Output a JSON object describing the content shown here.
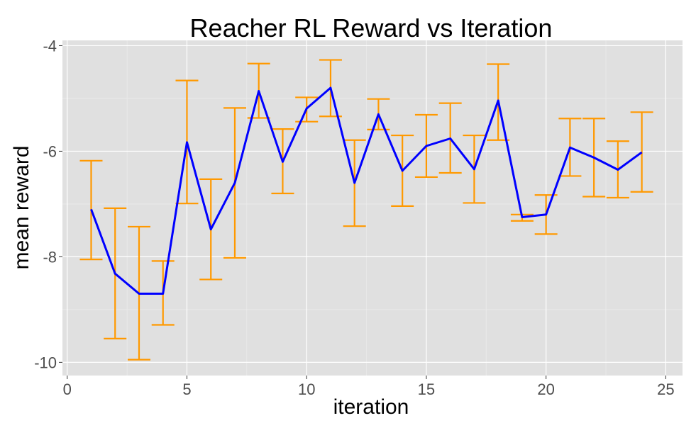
{
  "chart_data": {
    "type": "line",
    "title": "Reacher RL Reward vs Iteration",
    "xlabel": "iteration",
    "ylabel": "mean reward",
    "xlim": [
      -0.2,
      25.7
    ],
    "ylim": [
      -10.25,
      -3.9
    ],
    "xticks": [
      0,
      5,
      10,
      15,
      20,
      25
    ],
    "xtick_labels": [
      "0",
      "5",
      "10",
      "15",
      "20",
      "25"
    ],
    "yticks": [
      -10,
      -8,
      -6,
      -4
    ],
    "ytick_labels": [
      "-10",
      "-8",
      "-6",
      "-4"
    ],
    "grid": true,
    "legend": "none",
    "colors": {
      "panel_background": "#e0e0e0",
      "grid_major": "#ffffff",
      "line": "#0000ff",
      "error_bars": "#ff9900"
    },
    "series": [
      {
        "x": [
          1,
          2,
          3,
          4,
          5,
          6,
          7,
          8,
          9,
          10,
          11,
          12,
          13,
          14,
          15,
          16,
          17,
          18,
          19,
          20,
          21,
          22,
          23,
          24
        ],
        "y": [
          -7.1,
          -8.32,
          -8.7,
          -8.7,
          -5.83,
          -7.48,
          -6.6,
          -4.86,
          -6.2,
          -5.19,
          -4.8,
          -6.6,
          -5.3,
          -6.37,
          -5.9,
          -5.76,
          -6.34,
          -5.04,
          -7.25,
          -7.2,
          -5.93,
          -6.12,
          -6.35,
          -6.02
        ],
        "y_lower": [
          -8.05,
          -9.55,
          -9.95,
          -9.29,
          -6.99,
          -8.43,
          -8.02,
          -5.37,
          -6.8,
          -5.44,
          -5.34,
          -7.42,
          -5.59,
          -7.04,
          -6.49,
          -6.41,
          -6.98,
          -5.79,
          -7.32,
          -7.57,
          -6.47,
          -6.86,
          -6.88,
          -6.77
        ],
        "y_upper": [
          -6.18,
          -7.08,
          -7.43,
          -8.08,
          -4.66,
          -6.53,
          -5.18,
          -4.34,
          -5.58,
          -4.98,
          -4.27,
          -5.79,
          -5.01,
          -5.7,
          -5.31,
          -5.09,
          -5.7,
          -4.35,
          -7.2,
          -6.83,
          -5.38,
          -5.38,
          -5.81,
          -5.26
        ]
      }
    ]
  }
}
